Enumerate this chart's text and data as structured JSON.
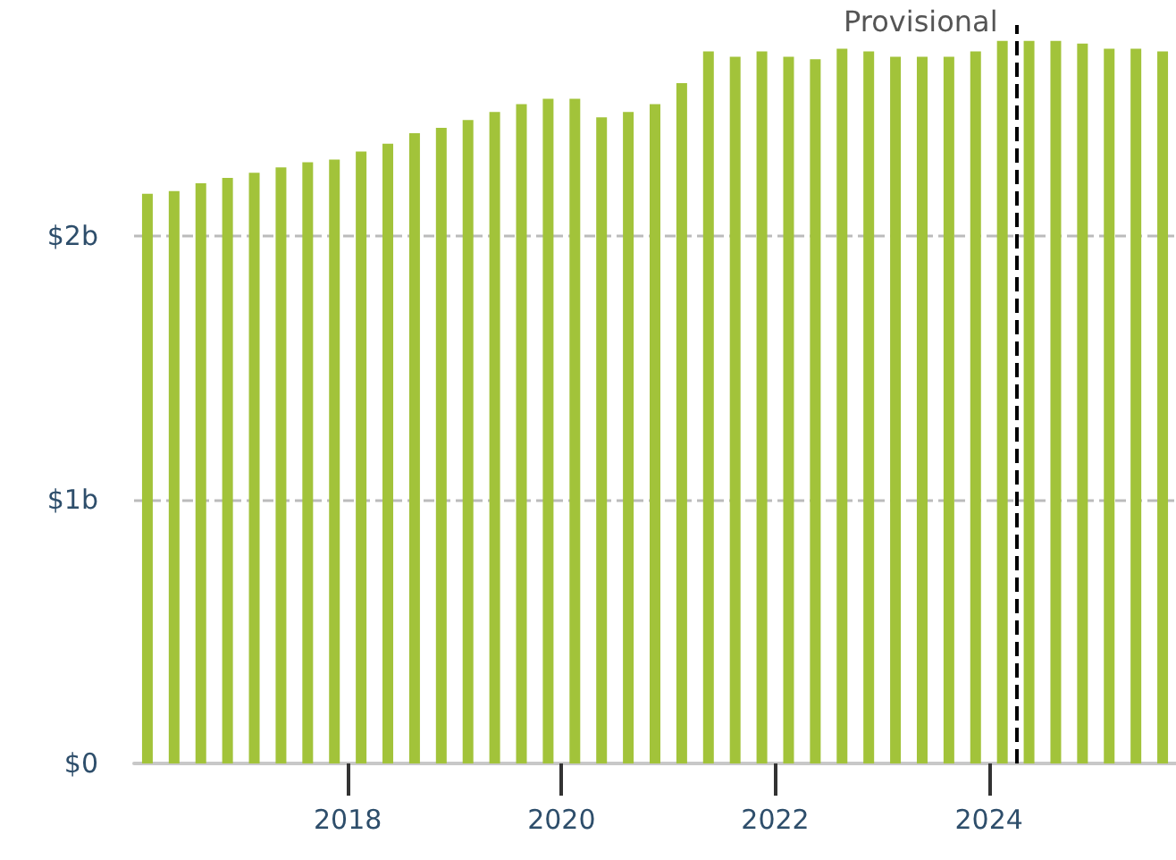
{
  "chart_data": {
    "type": "bar",
    "color": "#a2c33a",
    "x": [
      2016.125,
      2016.375,
      2016.625,
      2016.875,
      2017.125,
      2017.375,
      2017.625,
      2017.875,
      2018.125,
      2018.375,
      2018.625,
      2018.875,
      2019.125,
      2019.375,
      2019.625,
      2019.875,
      2020.125,
      2020.375,
      2020.625,
      2020.875,
      2021.125,
      2021.375,
      2021.625,
      2021.875,
      2022.125,
      2022.375,
      2022.625,
      2022.875,
      2023.125,
      2023.375,
      2023.625,
      2023.875,
      2024.125,
      2024.375,
      2024.625,
      2024.875,
      2025.125,
      2025.375,
      2025.625
    ],
    "values": [
      2.16,
      2.17,
      2.2,
      2.22,
      2.24,
      2.26,
      2.28,
      2.29,
      2.32,
      2.35,
      2.39,
      2.41,
      2.44,
      2.47,
      2.5,
      2.52,
      2.52,
      2.45,
      2.47,
      2.5,
      2.58,
      2.7,
      2.68,
      2.7,
      2.68,
      2.67,
      2.71,
      2.7,
      2.68,
      2.68,
      2.68,
      2.7,
      2.74,
      2.74,
      2.74,
      2.73,
      2.71,
      2.71,
      2.7
    ],
    "xlim": [
      2016,
      2025.75
    ],
    "xticks": [
      2018,
      2020,
      2022,
      2024
    ],
    "ylim": [
      0,
      2.8
    ],
    "yticks": [
      {
        "value": 0,
        "label": "$0"
      },
      {
        "value": 1,
        "label": "$1b"
      },
      {
        "value": 2,
        "label": "$2b"
      }
    ],
    "grid": "y",
    "ref_lines": [
      {
        "axis": "x",
        "value": 2024.25,
        "label": "Provisional",
        "color": "#000000",
        "line_style": "dashed"
      }
    ]
  }
}
